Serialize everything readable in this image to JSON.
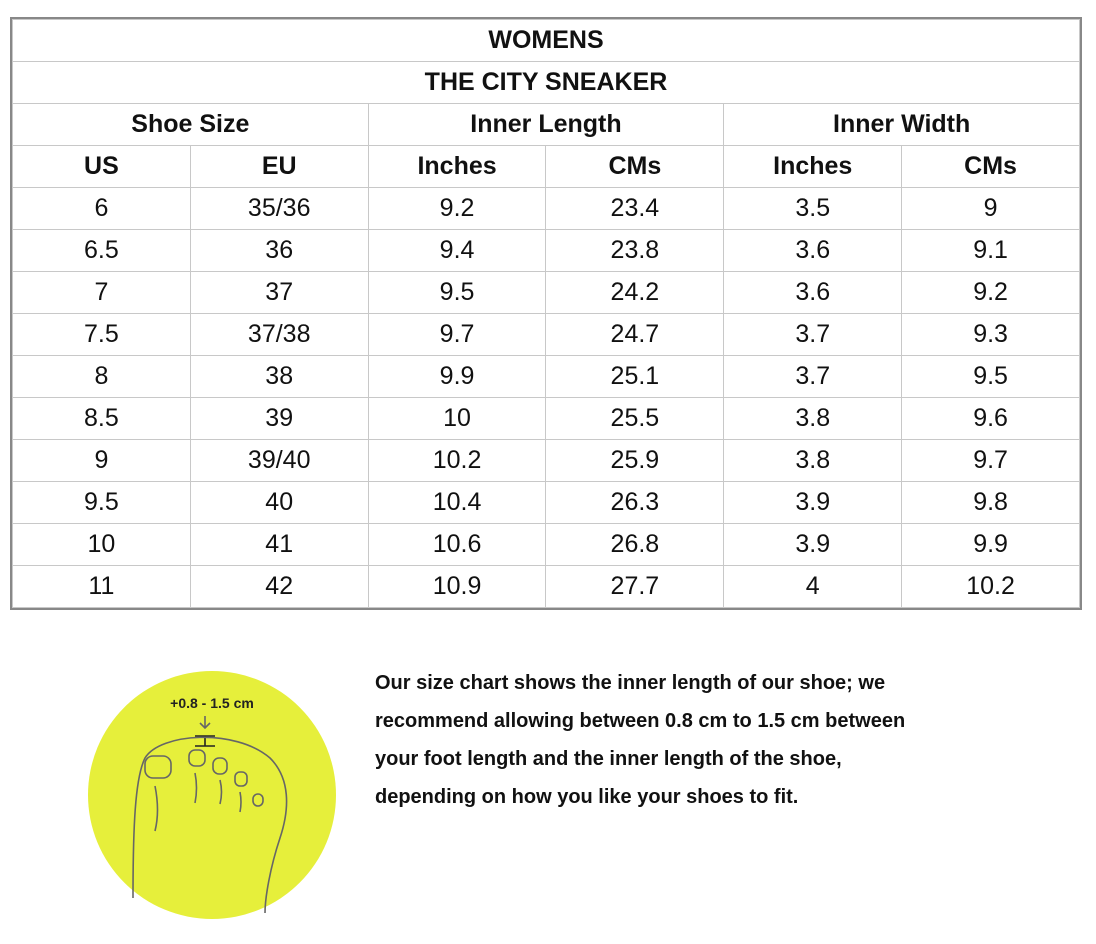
{
  "header": {
    "title": "WOMENS",
    "subtitle": "THE CITY SNEAKER"
  },
  "table": {
    "groups": [
      "Shoe Size",
      "Inner Length",
      "Inner Width"
    ],
    "columns": [
      "US",
      "EU",
      "Inches",
      "CMs",
      "Inches",
      "CMs"
    ],
    "rows": [
      [
        "6",
        "35/36",
        "9.2",
        "23.4",
        "3.5",
        "9"
      ],
      [
        "6.5",
        "36",
        "9.4",
        "23.8",
        "3.6",
        "9.1"
      ],
      [
        "7",
        "37",
        "9.5",
        "24.2",
        "3.6",
        "9.2"
      ],
      [
        "7.5",
        "37/38",
        "9.7",
        "24.7",
        "3.7",
        "9.3"
      ],
      [
        "8",
        "38",
        "9.9",
        "25.1",
        "3.7",
        "9.5"
      ],
      [
        "8.5",
        "39",
        "10",
        "25.5",
        "3.8",
        "9.6"
      ],
      [
        "9",
        "39/40",
        "10.2",
        "25.9",
        "3.8",
        "9.7"
      ],
      [
        "9.5",
        "40",
        "10.4",
        "26.3",
        "3.9",
        "9.8"
      ],
      [
        "10",
        "41",
        "10.6",
        "26.8",
        "3.9",
        "9.9"
      ],
      [
        "11",
        "42",
        "10.9",
        "27.7",
        "4",
        "10.2"
      ]
    ]
  },
  "illustration": {
    "label": "+0.8 - 1.5 cm"
  },
  "note": {
    "lines": [
      "Our size chart shows the inner length of our shoe; we",
      "recommend allowing between 0.8 cm to 1.5 cm between",
      "your foot length and the inner length of the shoe,",
      "depending on how you like your shoes to fit."
    ]
  }
}
